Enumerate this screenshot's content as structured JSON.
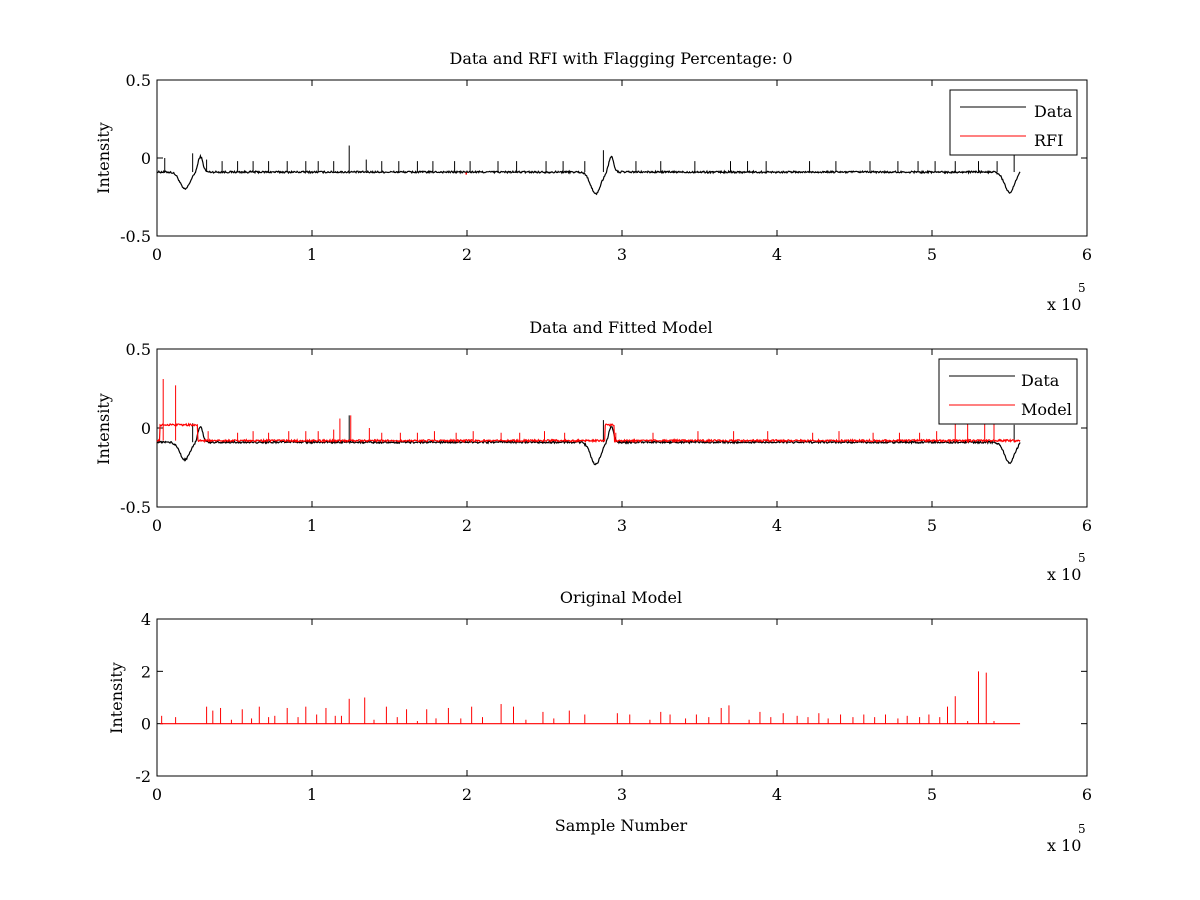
{
  "figure": {
    "background": "#ffffff",
    "colors": {
      "data": "#000000",
      "model": "#ff0000",
      "axes": "#000000"
    }
  },
  "chart_data": [
    {
      "type": "line",
      "title": "Data and RFI with Flagging Percentage: 0",
      "xlabel": "",
      "ylabel": "Intensity",
      "xlim": [
        0,
        600000
      ],
      "ylim": [
        -0.5,
        0.5
      ],
      "xticks": [
        0,
        1,
        2,
        3,
        4,
        5,
        6
      ],
      "yticks": [
        "-0.5",
        "0",
        "0.5"
      ],
      "x_multiplier": "x 10",
      "x_exponent": "5",
      "grid": false,
      "legend": {
        "location": "top-right",
        "entries": [
          {
            "label": "Data",
            "color": "#000000"
          },
          {
            "label": "RFI",
            "color": "#ff0000"
          }
        ]
      },
      "series": [
        {
          "name": "Data",
          "color": "#000000",
          "baseline": -0.09,
          "end": 557000,
          "dips": [
            [
              18000,
              -0.2
            ],
            [
              283000,
              -0.23
            ],
            [
              550000,
              -0.22
            ]
          ],
          "spikes": [
            [
              5000,
              0.0
            ],
            [
              23000,
              0.03
            ],
            [
              32000,
              -0.01
            ],
            [
              42000,
              -0.02
            ],
            [
              52000,
              -0.02
            ],
            [
              62000,
              -0.02
            ],
            [
              72000,
              -0.02
            ],
            [
              84000,
              -0.02
            ],
            [
              96000,
              -0.02
            ],
            [
              104000,
              -0.02
            ],
            [
              114000,
              -0.02
            ],
            [
              124000,
              0.08
            ],
            [
              135000,
              -0.01
            ],
            [
              145000,
              -0.02
            ],
            [
              156000,
              -0.02
            ],
            [
              168000,
              -0.02
            ],
            [
              178000,
              -0.02
            ],
            [
              192000,
              -0.02
            ],
            [
              202000,
              -0.02
            ],
            [
              220000,
              -0.02
            ],
            [
              232000,
              -0.02
            ],
            [
              251000,
              -0.02
            ],
            [
              262000,
              -0.02
            ],
            [
              276000,
              -0.02
            ],
            [
              288000,
              0.05
            ],
            [
              309000,
              -0.02
            ],
            [
              325000,
              -0.02
            ],
            [
              347000,
              -0.02
            ],
            [
              370000,
              -0.02
            ],
            [
              381000,
              -0.02
            ],
            [
              393000,
              -0.02
            ],
            [
              421000,
              -0.02
            ],
            [
              438000,
              -0.02
            ],
            [
              460000,
              -0.02
            ],
            [
              478000,
              -0.02
            ],
            [
              491000,
              -0.02
            ],
            [
              502000,
              -0.02
            ],
            [
              515000,
              -0.02
            ],
            [
              530000,
              -0.02
            ],
            [
              542000,
              -0.02
            ],
            [
              553000,
              0.02
            ]
          ]
        },
        {
          "name": "RFI",
          "color": "#ff0000",
          "segments": [
            [
              199000,
              200000,
              -0.1
            ]
          ]
        }
      ]
    },
    {
      "type": "line",
      "title": "Data and Fitted Model",
      "xlabel": "",
      "ylabel": "Intensity",
      "xlim": [
        0,
        600000
      ],
      "ylim": [
        -0.5,
        0.5
      ],
      "xticks": [
        0,
        1,
        2,
        3,
        4,
        5,
        6
      ],
      "yticks": [
        "-0.5",
        "0",
        "0.5"
      ],
      "x_multiplier": "x 10",
      "x_exponent": "5",
      "grid": false,
      "legend": {
        "location": "top-right",
        "entries": [
          {
            "label": "Data",
            "color": "#000000"
          },
          {
            "label": "Model",
            "color": "#ff0000"
          }
        ]
      },
      "series": [
        {
          "name": "Data",
          "color": "#000000",
          "baseline": -0.09,
          "end": 557000,
          "dips": [
            [
              18000,
              -0.2
            ],
            [
              283000,
              -0.23
            ],
            [
              550000,
              -0.22
            ]
          ],
          "spikes": [
            [
              23000,
              0.03
            ],
            [
              124000,
              0.08
            ],
            [
              288000,
              0.05
            ],
            [
              553000,
              0.02
            ]
          ]
        },
        {
          "name": "Model",
          "color": "#ff0000",
          "baseline": -0.08,
          "end": 557000,
          "plateaus": [
            [
              2000,
              26000,
              0.02
            ],
            [
              289000,
              295000,
              0.02
            ]
          ],
          "spikes": [
            [
              4000,
              0.31
            ],
            [
              12000,
              0.27
            ],
            [
              33000,
              -0.02
            ],
            [
              52000,
              -0.03
            ],
            [
              62000,
              -0.02
            ],
            [
              72000,
              -0.03
            ],
            [
              85000,
              -0.02
            ],
            [
              96000,
              -0.02
            ],
            [
              104000,
              -0.02
            ],
            [
              114000,
              -0.01
            ],
            [
              118000,
              0.06
            ],
            [
              125000,
              0.08
            ],
            [
              137000,
              0.0
            ],
            [
              145000,
              -0.03
            ],
            [
              157000,
              -0.03
            ],
            [
              168000,
              -0.03
            ],
            [
              179000,
              -0.02
            ],
            [
              193000,
              -0.03
            ],
            [
              204000,
              -0.02
            ],
            [
              222000,
              -0.03
            ],
            [
              234000,
              -0.03
            ],
            [
              250000,
              -0.02
            ],
            [
              263000,
              -0.03
            ],
            [
              296000,
              -0.03
            ],
            [
              320000,
              -0.03
            ],
            [
              349000,
              -0.02
            ],
            [
              372000,
              -0.02
            ],
            [
              394000,
              -0.02
            ],
            [
              423000,
              -0.03
            ],
            [
              440000,
              -0.02
            ],
            [
              462000,
              -0.03
            ],
            [
              479000,
              -0.03
            ],
            [
              492000,
              -0.03
            ],
            [
              503000,
              -0.02
            ],
            [
              515000,
              0.03
            ],
            [
              523000,
              0.07
            ],
            [
              534000,
              0.08
            ],
            [
              540000,
              0.05
            ]
          ]
        }
      ]
    },
    {
      "type": "line",
      "title": "Original Model",
      "xlabel": "Sample Number",
      "ylabel": "Intensity",
      "xlim": [
        0,
        600000
      ],
      "ylim": [
        -2,
        4
      ],
      "xticks": [
        0,
        1,
        2,
        3,
        4,
        5,
        6
      ],
      "yticks": [
        "-2",
        "0",
        "2",
        "4"
      ],
      "x_multiplier": "x 10",
      "x_exponent": "5",
      "grid": false,
      "series": [
        {
          "color": "#ff0000",
          "baseline": 0,
          "start": 2000,
          "end": 557000,
          "spikes": [
            [
              3000,
              0.3
            ],
            [
              12000,
              0.25
            ],
            [
              32000,
              0.65
            ],
            [
              36000,
              0.5
            ],
            [
              41000,
              0.6
            ],
            [
              48000,
              0.15
            ],
            [
              55000,
              0.55
            ],
            [
              61000,
              0.2
            ],
            [
              66000,
              0.65
            ],
            [
              72000,
              0.25
            ],
            [
              76000,
              0.3
            ],
            [
              84000,
              0.6
            ],
            [
              91000,
              0.25
            ],
            [
              96000,
              0.65
            ],
            [
              103000,
              0.35
            ],
            [
              109000,
              0.6
            ],
            [
              115000,
              0.3
            ],
            [
              119000,
              0.3
            ],
            [
              124000,
              0.95
            ],
            [
              134000,
              1.0
            ],
            [
              140000,
              0.15
            ],
            [
              148000,
              0.65
            ],
            [
              155000,
              0.25
            ],
            [
              161000,
              0.55
            ],
            [
              168000,
              0.1
            ],
            [
              174000,
              0.55
            ],
            [
              180000,
              0.2
            ],
            [
              188000,
              0.6
            ],
            [
              196000,
              0.2
            ],
            [
              203000,
              0.65
            ],
            [
              210000,
              0.25
            ],
            [
              222000,
              0.75
            ],
            [
              230000,
              0.65
            ],
            [
              238000,
              0.15
            ],
            [
              249000,
              0.45
            ],
            [
              256000,
              0.2
            ],
            [
              266000,
              0.5
            ],
            [
              276000,
              0.35
            ],
            [
              297000,
              0.4
            ],
            [
              305000,
              0.35
            ],
            [
              318000,
              0.15
            ],
            [
              325000,
              0.45
            ],
            [
              331000,
              0.35
            ],
            [
              341000,
              0.2
            ],
            [
              348000,
              0.35
            ],
            [
              356000,
              0.25
            ],
            [
              364000,
              0.6
            ],
            [
              369000,
              0.7
            ],
            [
              382000,
              0.15
            ],
            [
              389000,
              0.45
            ],
            [
              396000,
              0.25
            ],
            [
              404000,
              0.4
            ],
            [
              413000,
              0.3
            ],
            [
              420000,
              0.25
            ],
            [
              427000,
              0.4
            ],
            [
              433000,
              0.2
            ],
            [
              441000,
              0.35
            ],
            [
              449000,
              0.25
            ],
            [
              456000,
              0.35
            ],
            [
              463000,
              0.25
            ],
            [
              470000,
              0.35
            ],
            [
              478000,
              0.2
            ],
            [
              484000,
              0.3
            ],
            [
              492000,
              0.25
            ],
            [
              498000,
              0.35
            ],
            [
              505000,
              0.25
            ],
            [
              510000,
              0.65
            ],
            [
              515000,
              1.05
            ],
            [
              523000,
              0.1
            ],
            [
              530000,
              2.0
            ],
            [
              535000,
              1.95
            ],
            [
              540000,
              0.1
            ]
          ]
        }
      ]
    }
  ]
}
